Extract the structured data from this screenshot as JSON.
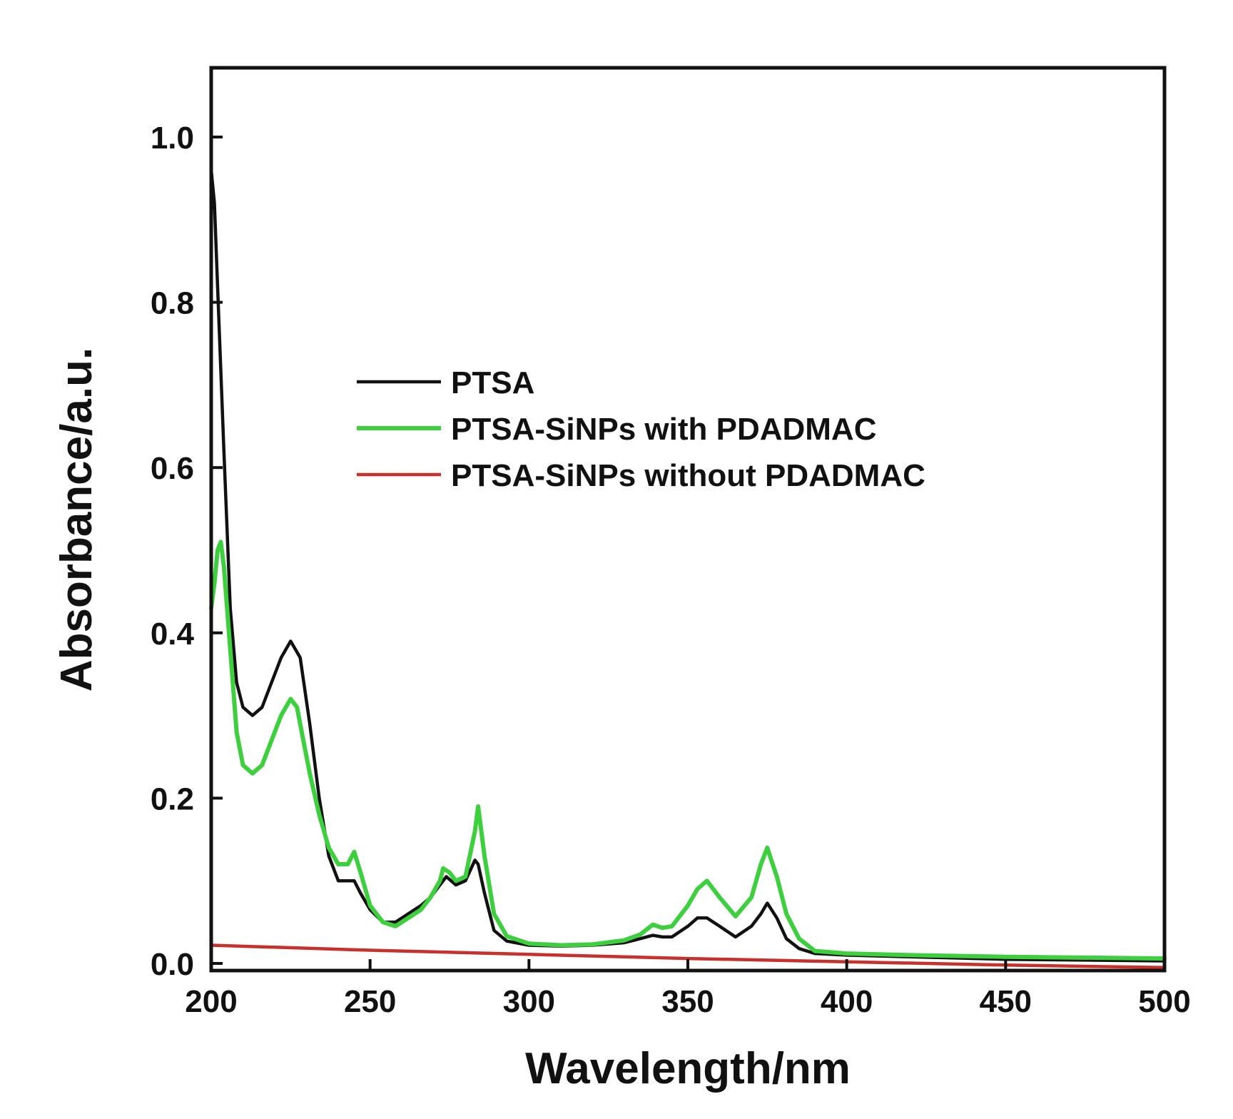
{
  "chart_data": {
    "type": "line",
    "title": "",
    "xlabel": "Wavelength/nm",
    "ylabel": "Absorbance/a.u.",
    "xlim": [
      200,
      500
    ],
    "ylim": [
      0.0,
      1.08
    ],
    "xticks": [
      200,
      250,
      300,
      350,
      400,
      450,
      500
    ],
    "xtick_labels": [
      "200",
      "250",
      "300",
      "350",
      "400",
      "450",
      "500"
    ],
    "yticks": [
      0.0,
      0.2,
      0.4,
      0.6,
      0.8,
      1.0
    ],
    "ytick_labels": [
      "0.0",
      "0.2",
      "0.4",
      "0.6",
      "0.8",
      "1.0"
    ],
    "grid": false,
    "legend_position": "center",
    "series": [
      {
        "name": "PTSA",
        "color": "#111111",
        "x": [
          200,
          201,
          202,
          204,
          206,
          208,
          210,
          213,
          216,
          219,
          222,
          225,
          228,
          231,
          234,
          237,
          240,
          243,
          245,
          247,
          250,
          254,
          258,
          262,
          266,
          269,
          272,
          274,
          277,
          280,
          283,
          284,
          286,
          289,
          293,
          300,
          310,
          320,
          330,
          335,
          339,
          342,
          345,
          350,
          353,
          356,
          360,
          365,
          370,
          373,
          375,
          378,
          381,
          385,
          390,
          400,
          420,
          450,
          500
        ],
        "y": [
          0.96,
          0.92,
          0.82,
          0.62,
          0.43,
          0.34,
          0.31,
          0.3,
          0.31,
          0.34,
          0.37,
          0.39,
          0.37,
          0.29,
          0.2,
          0.13,
          0.1,
          0.1,
          0.1,
          0.085,
          0.065,
          0.05,
          0.05,
          0.06,
          0.07,
          0.08,
          0.095,
          0.105,
          0.095,
          0.1,
          0.125,
          0.12,
          0.085,
          0.04,
          0.027,
          0.022,
          0.021,
          0.022,
          0.025,
          0.03,
          0.034,
          0.032,
          0.032,
          0.045,
          0.055,
          0.055,
          0.045,
          0.032,
          0.045,
          0.06,
          0.073,
          0.055,
          0.03,
          0.018,
          0.012,
          0.01,
          0.008,
          0.005,
          0.003
        ]
      },
      {
        "name": "PTSA-SiNPs with PDADMAC",
        "color": "#3ecf3e",
        "x": [
          200,
          201,
          202,
          203,
          204,
          206,
          208,
          210,
          213,
          216,
          219,
          222,
          225,
          227,
          229,
          231,
          234,
          237,
          240,
          243,
          245,
          247,
          250,
          254,
          258,
          262,
          266,
          269,
          272,
          273,
          275,
          277,
          280,
          283,
          284,
          286,
          289,
          293,
          300,
          310,
          320,
          330,
          335,
          339,
          342,
          345,
          350,
          353,
          356,
          360,
          365,
          370,
          373,
          375,
          378,
          381,
          385,
          390,
          400,
          420,
          450,
          500
        ],
        "y": [
          0.43,
          0.46,
          0.5,
          0.51,
          0.48,
          0.38,
          0.28,
          0.24,
          0.23,
          0.24,
          0.27,
          0.3,
          0.32,
          0.31,
          0.27,
          0.23,
          0.18,
          0.14,
          0.12,
          0.12,
          0.135,
          0.11,
          0.07,
          0.05,
          0.045,
          0.055,
          0.065,
          0.08,
          0.1,
          0.115,
          0.11,
          0.1,
          0.105,
          0.16,
          0.19,
          0.13,
          0.06,
          0.033,
          0.024,
          0.022,
          0.023,
          0.028,
          0.035,
          0.047,
          0.043,
          0.045,
          0.07,
          0.09,
          0.1,
          0.08,
          0.057,
          0.08,
          0.12,
          0.14,
          0.105,
          0.06,
          0.03,
          0.015,
          0.012,
          0.01,
          0.008,
          0.006
        ]
      },
      {
        "name": "PTSA-SiNPs without PDADMAC",
        "color": "#c8302c",
        "x": [
          200,
          250,
          300,
          350,
          400,
          450,
          500
        ],
        "y": [
          0.022,
          0.016,
          0.011,
          0.006,
          0.002,
          -0.002,
          -0.005
        ]
      }
    ]
  }
}
